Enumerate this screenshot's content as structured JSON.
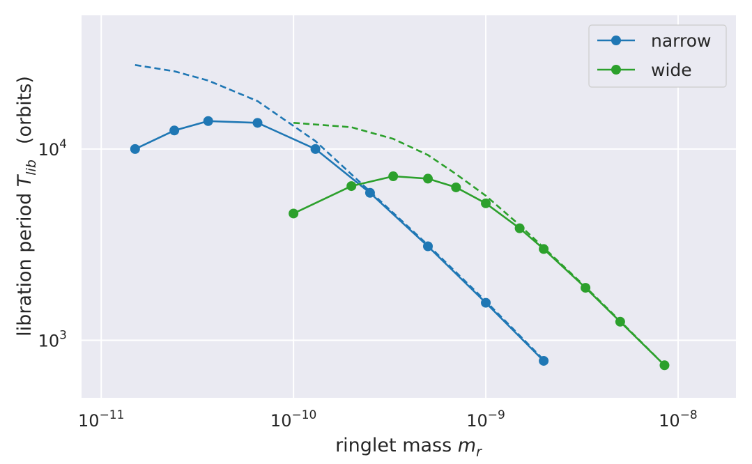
{
  "chart_data": {
    "type": "line",
    "xscale": "log",
    "yscale": "log",
    "xlim": [
      7.9e-12,
      2e-08
    ],
    "ylim": [
      500,
      50000
    ],
    "grid": true,
    "background": "#eaeaf2",
    "xlabel": {
      "prefix": "ringlet mass ",
      "math": "m",
      "sub": "r"
    },
    "ylabel": {
      "prefix": "libration period ",
      "math": "T",
      "sub": "lib",
      "suffix": "(orbits)"
    },
    "xticks": [
      {
        "value": 1e-11,
        "base": "10",
        "exp": "−11"
      },
      {
        "value": 1e-10,
        "base": "10",
        "exp": "−10"
      },
      {
        "value": 1e-09,
        "base": "10",
        "exp": "−9"
      },
      {
        "value": 1e-08,
        "base": "10",
        "exp": "−8"
      }
    ],
    "yticks": [
      {
        "value": 1000,
        "base": "10",
        "exp": "3"
      },
      {
        "value": 10000,
        "base": "10",
        "exp": "4"
      }
    ],
    "legend": {
      "placement": "top-right"
    },
    "series": [
      {
        "name": "narrow",
        "color": "#1f77b4",
        "style": "solid-marker",
        "x": [
          1.5e-11,
          2.4e-11,
          3.6e-11,
          6.5e-11,
          1.3e-10,
          2.5e-10,
          5e-10,
          1e-09,
          2e-09
        ],
        "y": [
          10000,
          12500,
          14000,
          13700,
          10000,
          5900,
          3100,
          1570,
          780
        ]
      },
      {
        "name": "wide",
        "color": "#2ca02c",
        "style": "solid-marker",
        "x": [
          1e-10,
          2e-10,
          3.3e-10,
          5e-10,
          7e-10,
          1e-09,
          1.5e-09,
          2e-09,
          3.3e-09,
          5e-09,
          8.5e-09
        ],
        "y": [
          4600,
          6400,
          7200,
          7000,
          6300,
          5200,
          3850,
          3000,
          1880,
          1250,
          740
        ]
      },
      {
        "color": "#1f77b4",
        "style": "dashed",
        "x": [
          1.5e-11,
          2.4e-11,
          3.6e-11,
          6.5e-11,
          1.3e-10,
          2.5e-10,
          5e-10,
          1e-09,
          2e-09
        ],
        "y": [
          27500,
          25500,
          22800,
          17800,
          11000,
          6000,
          3150,
          1600,
          790
        ]
      },
      {
        "color": "#2ca02c",
        "style": "dashed",
        "x": [
          1e-10,
          2e-10,
          3.3e-10,
          5e-10,
          7e-10,
          1e-09,
          1.5e-09,
          2e-09,
          3.3e-09,
          5e-09,
          8.5e-09
        ],
        "y": [
          13700,
          13000,
          11300,
          9300,
          7400,
          5700,
          4000,
          3050,
          1900,
          1260,
          740
        ]
      }
    ]
  }
}
